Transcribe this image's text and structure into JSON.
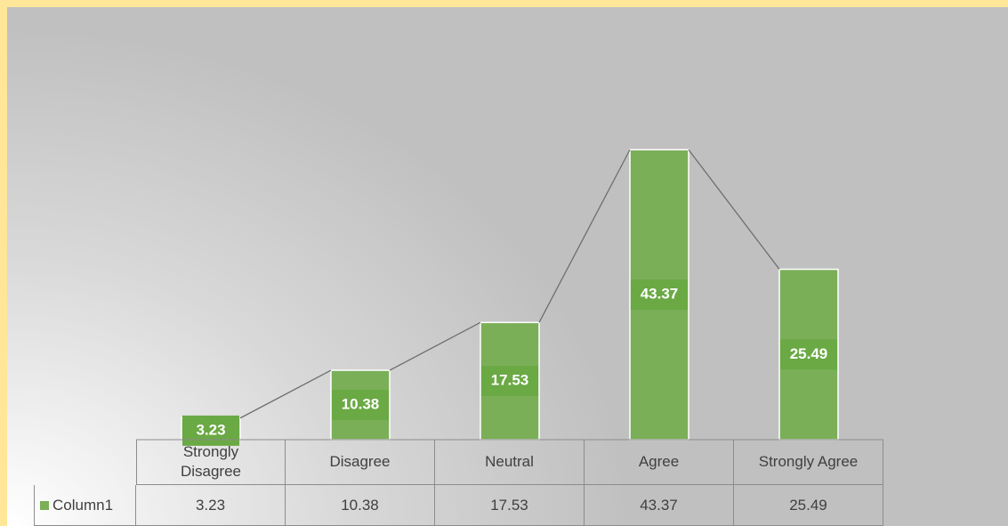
{
  "chart_data": {
    "type": "bar",
    "categories": [
      "Strongly Disagree",
      "Disagree",
      "Neutral",
      "Agree",
      "Strongly Agree"
    ],
    "series": [
      {
        "name": "Column1",
        "color": "#7aaf58",
        "values": [
          3.23,
          10.38,
          17.53,
          43.37,
          25.49
        ]
      }
    ],
    "ylim": [
      0,
      45
    ],
    "data_table": true,
    "series_lines": true
  }
}
